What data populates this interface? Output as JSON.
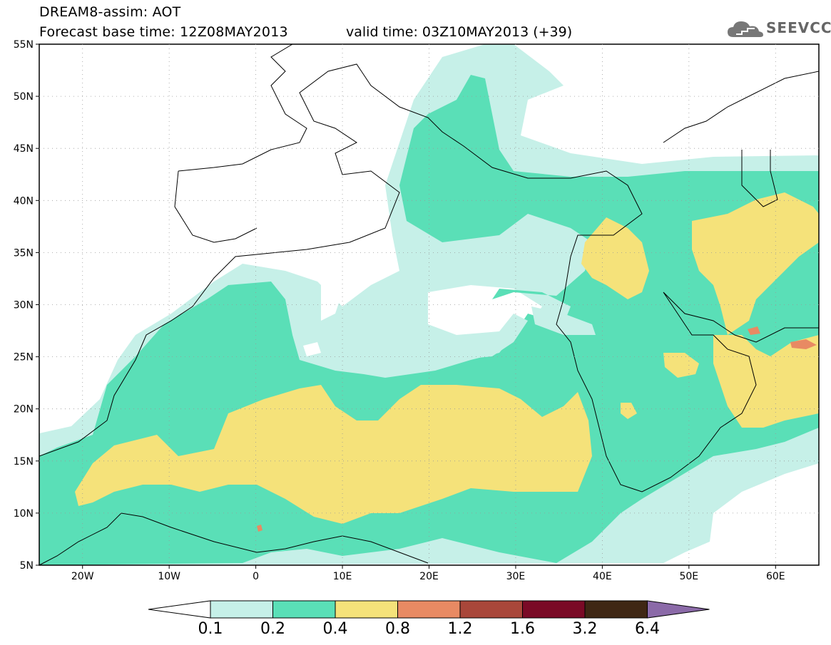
{
  "header": {
    "title": "DREAM8-assim: AOT",
    "base_time": "Forecast base time: 12Z08MAY2013",
    "valid_time": "valid time: 03Z10MAY2013 (+39)",
    "logo_text": "SEEVCCC"
  },
  "map": {
    "lon_range": [
      -25,
      65
    ],
    "lat_range": [
      5,
      55
    ],
    "lat_ticks": [
      "55N",
      "50N",
      "45N",
      "40N",
      "35N",
      "30N",
      "25N",
      "20N",
      "15N",
      "10N",
      "5N"
    ],
    "lon_ticks": [
      "20W",
      "10W",
      "0",
      "10E",
      "20E",
      "30E",
      "40E",
      "50E",
      "60E"
    ]
  },
  "colorbar": {
    "labels": [
      "0.1",
      "0.2",
      "0.4",
      "0.8",
      "1.2",
      "1.6",
      "3.2",
      "6.4"
    ],
    "colors": [
      "#c6f0e8",
      "#5adfb7",
      "#f5e27a",
      "#e88a63",
      "#a9473a",
      "#7a0a26",
      "#3f2714",
      "#8b6aa8"
    ]
  }
}
